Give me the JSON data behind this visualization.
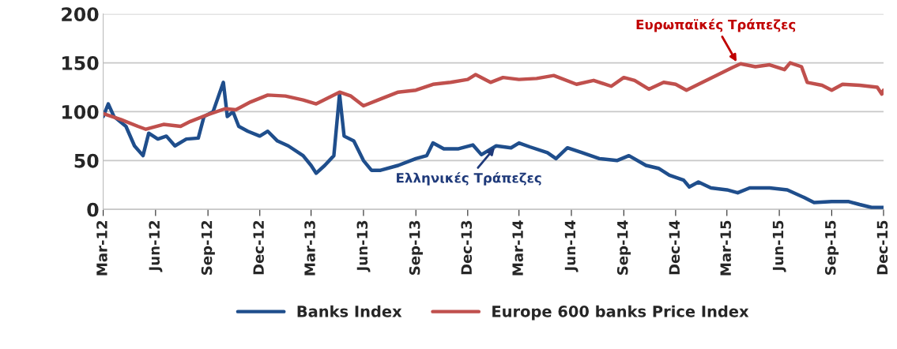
{
  "chart_data": {
    "type": "line",
    "ylim": [
      0,
      200
    ],
    "yticks": [
      0,
      50,
      100,
      150,
      200
    ],
    "xlim": [
      "2012-03-01",
      "2015-12-01"
    ],
    "xticks": [
      {
        "value": "2012-03-01",
        "label": "Mar-12"
      },
      {
        "value": "2012-06-01",
        "label": "Jun-12"
      },
      {
        "value": "2012-09-01",
        "label": "Sep-12"
      },
      {
        "value": "2012-12-01",
        "label": "Dec-12"
      },
      {
        "value": "2013-03-01",
        "label": "Mar-13"
      },
      {
        "value": "2013-06-01",
        "label": "Jun-13"
      },
      {
        "value": "2013-09-01",
        "label": "Sep-13"
      },
      {
        "value": "2013-12-01",
        "label": "Dec-13"
      },
      {
        "value": "2014-03-01",
        "label": "Mar-14"
      },
      {
        "value": "2014-06-01",
        "label": "Jun-14"
      },
      {
        "value": "2014-09-01",
        "label": "Sep-14"
      },
      {
        "value": "2014-12-01",
        "label": "Dec-14"
      },
      {
        "value": "2015-03-01",
        "label": "Mar-15"
      },
      {
        "value": "2015-06-01",
        "label": "Jun-15"
      },
      {
        "value": "2015-09-01",
        "label": "Sep-15"
      },
      {
        "value": "2015-12-01",
        "label": "Dec-15"
      }
    ],
    "grid": "y",
    "legend": "bottom",
    "marker": "none",
    "line_style": "solid",
    "series": [
      {
        "name": "Banks Index",
        "color": "#1f4e8c",
        "x": [
          "2012-03-01",
          "2012-03-10",
          "2012-03-20",
          "2012-04-10",
          "2012-04-25",
          "2012-05-10",
          "2012-05-20",
          "2012-06-05",
          "2012-06-20",
          "2012-07-05",
          "2012-07-25",
          "2012-08-15",
          "2012-08-25",
          "2012-09-10",
          "2012-09-28",
          "2012-10-05",
          "2012-10-15",
          "2012-10-25",
          "2012-11-10",
          "2012-12-01",
          "2012-12-15",
          "2013-01-01",
          "2013-01-20",
          "2013-02-15",
          "2013-03-01",
          "2013-03-10",
          "2013-03-25",
          "2013-04-10",
          "2013-04-20",
          "2013-04-28",
          "2013-05-15",
          "2013-06-01",
          "2013-06-15",
          "2013-07-01",
          "2013-08-01",
          "2013-09-01",
          "2013-09-20",
          "2013-10-01",
          "2013-10-20",
          "2013-11-15",
          "2013-12-10",
          "2013-12-25",
          "2014-01-20",
          "2014-02-15",
          "2014-03-01",
          "2014-03-20",
          "2014-04-20",
          "2014-05-05",
          "2014-05-25",
          "2014-06-20",
          "2014-07-20",
          "2014-08-20",
          "2014-09-10",
          "2014-10-10",
          "2014-11-01",
          "2014-11-20",
          "2014-12-15",
          "2014-12-25",
          "2015-01-10",
          "2015-02-01",
          "2015-03-01",
          "2015-03-20",
          "2015-04-10",
          "2015-05-15",
          "2015-06-15",
          "2015-07-15",
          "2015-08-01",
          "2015-09-01",
          "2015-10-01",
          "2015-10-20",
          "2015-11-10",
          "2015-12-01"
        ],
        "values": [
          95,
          108,
          95,
          85,
          65,
          55,
          78,
          72,
          75,
          65,
          72,
          73,
          95,
          100,
          130,
          95,
          100,
          85,
          80,
          75,
          80,
          70,
          65,
          55,
          45,
          37,
          45,
          55,
          118,
          75,
          70,
          50,
          40,
          40,
          45,
          52,
          55,
          68,
          62,
          62,
          66,
          56,
          65,
          63,
          68,
          64,
          58,
          52,
          63,
          58,
          52,
          50,
          55,
          45,
          42,
          35,
          30,
          23,
          28,
          22,
          20,
          17,
          22,
          22,
          20,
          12,
          7,
          8,
          8,
          5,
          2,
          2
        ]
      },
      {
        "name": "Europe 600 banks Price Index",
        "color": "#c0504d",
        "x": [
          "2012-03-01",
          "2012-04-01",
          "2012-05-01",
          "2012-05-15",
          "2012-06-15",
          "2012-07-15",
          "2012-08-01",
          "2012-09-01",
          "2012-10-01",
          "2012-10-20",
          "2012-11-15",
          "2012-12-15",
          "2013-01-15",
          "2013-02-15",
          "2013-03-10",
          "2013-04-20",
          "2013-05-10",
          "2013-06-01",
          "2013-07-01",
          "2013-08-01",
          "2013-09-01",
          "2013-10-01",
          "2013-11-01",
          "2013-12-01",
          "2013-12-15",
          "2014-01-10",
          "2014-02-01",
          "2014-03-01",
          "2014-04-01",
          "2014-05-01",
          "2014-06-10",
          "2014-07-10",
          "2014-08-10",
          "2014-09-01",
          "2014-09-20",
          "2014-10-15",
          "2014-11-10",
          "2014-12-01",
          "2014-12-20",
          "2015-01-10",
          "2015-02-10",
          "2015-03-10",
          "2015-03-25",
          "2015-04-20",
          "2015-05-15",
          "2015-06-10",
          "2015-06-20",
          "2015-07-10",
          "2015-07-20",
          "2015-08-15",
          "2015-09-01",
          "2015-09-20",
          "2015-10-20",
          "2015-11-20",
          "2015-11-28",
          "2015-12-01"
        ],
        "values": [
          98,
          92,
          85,
          82,
          87,
          85,
          90,
          97,
          103,
          102,
          110,
          117,
          116,
          112,
          108,
          120,
          116,
          106,
          113,
          120,
          122,
          128,
          130,
          133,
          138,
          130,
          135,
          133,
          134,
          137,
          128,
          132,
          126,
          135,
          132,
          123,
          130,
          128,
          122,
          128,
          137,
          145,
          149,
          146,
          148,
          143,
          150,
          146,
          130,
          127,
          122,
          128,
          127,
          125,
          118,
          122
        ]
      }
    ],
    "annotations": [
      {
        "text": "Ευρωπαϊκές Τράπεζες",
        "x": "2015-03-20",
        "y": 149
      },
      {
        "text": "Ελληνικές Τράπεζες",
        "x": "2014-01-20",
        "y": 65
      }
    ]
  }
}
